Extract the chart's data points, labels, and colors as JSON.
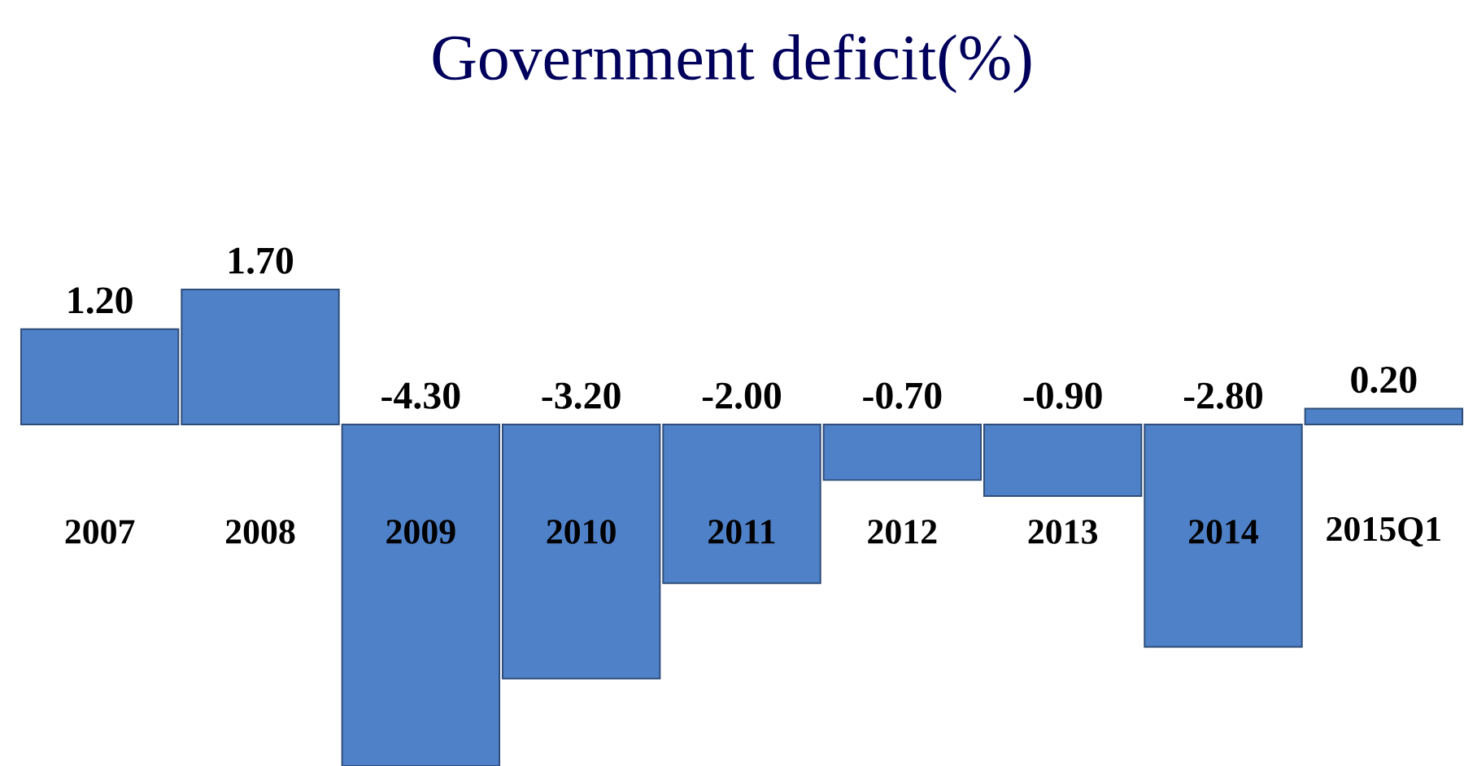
{
  "chart_data": {
    "type": "bar",
    "title": "Government deficit(%)",
    "categories": [
      "2007",
      "2008",
      "2009",
      "2010",
      "2011",
      "2012",
      "2013",
      "2014",
      "2015Q1"
    ],
    "values": [
      1.2,
      1.7,
      -4.3,
      -3.2,
      -2.0,
      -0.7,
      -0.9,
      -2.8,
      0.2
    ],
    "value_labels": [
      "1.20",
      "1.70",
      "-4.30",
      "-3.20",
      "-2.00",
      "-0.70",
      "-0.90",
      "-2.80",
      "0.20"
    ],
    "color": "#4f81c9",
    "ylim": [
      -4.3,
      1.7
    ]
  }
}
